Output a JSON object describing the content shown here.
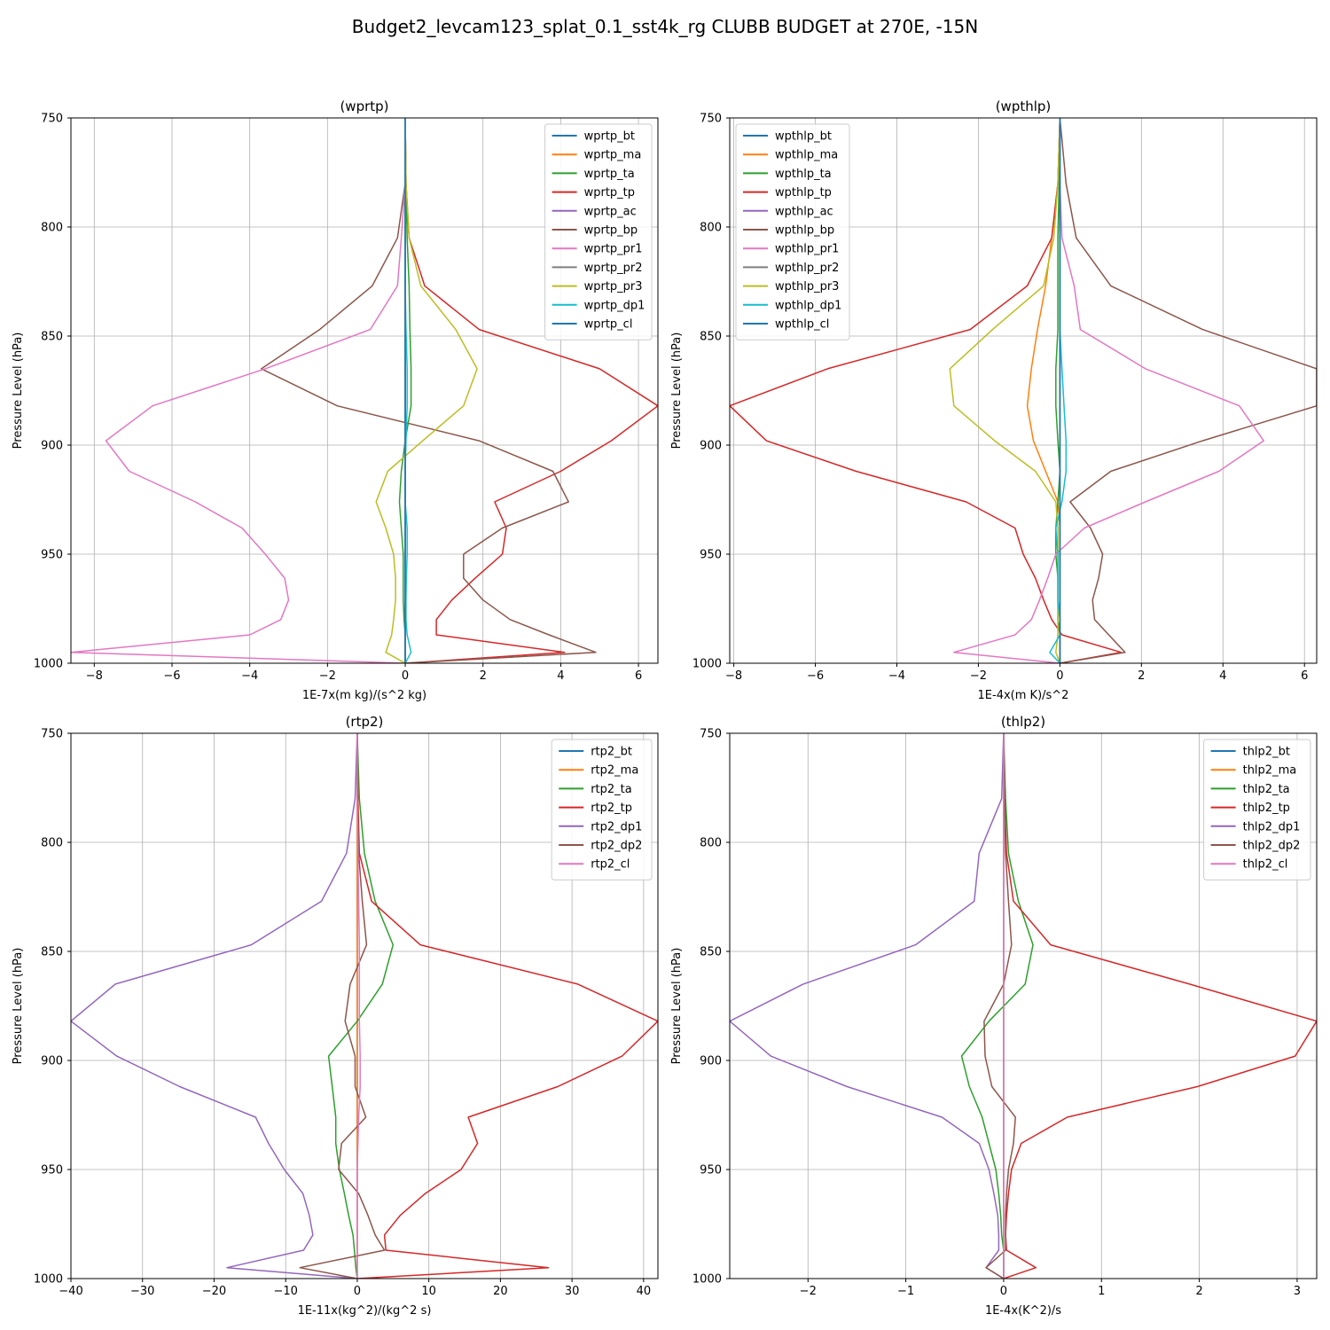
{
  "figure_title": "Budget2_levcam123_splat_0.1_sst4k_rg CLUBB BUDGET at 270E, -15N",
  "chart_data": [
    {
      "type": "line",
      "title": "(wprtp)",
      "xlabel": "1E-7x(m kg)/(s^2 kg)",
      "ylabel": "Pressure Level (hPa)",
      "xlim": [
        -8.6,
        6.5
      ],
      "ylim": [
        1000,
        750
      ],
      "xticks": [
        -8,
        -6,
        -4,
        -2,
        0,
        2,
        4,
        6
      ],
      "yticks": [
        750,
        800,
        850,
        900,
        950,
        1000
      ],
      "grid": true,
      "legend": "upper right",
      "levels": [
        750,
        780,
        805,
        827,
        847,
        865,
        882,
        898,
        912,
        926,
        938,
        950,
        961,
        971,
        980,
        987,
        995,
        1000
      ],
      "series": [
        {
          "name": "wprtp_bt",
          "color": "#1f77b4",
          "values": [
            0,
            0,
            0,
            0,
            0,
            0,
            0,
            0,
            0,
            0,
            0,
            0,
            0,
            0,
            0,
            0,
            0,
            0
          ]
        },
        {
          "name": "wprtp_ma",
          "color": "#ff7f0e",
          "values": [
            0,
            0,
            0,
            0,
            0,
            0,
            0,
            0,
            0,
            0,
            0,
            0,
            0,
            0,
            0,
            0,
            0,
            0
          ]
        },
        {
          "name": "wprtp_ta",
          "color": "#2ca02c",
          "values": [
            0,
            0.02,
            0.05,
            0.1,
            0.12,
            0.15,
            0.15,
            0.0,
            -0.1,
            -0.15,
            -0.1,
            -0.05,
            -0.05,
            -0.05,
            -0.03,
            0,
            0,
            0
          ]
        },
        {
          "name": "wprtp_tp",
          "color": "#d62728",
          "values": [
            0,
            0.02,
            0.1,
            0.5,
            1.9,
            5.0,
            6.5,
            5.3,
            4.0,
            2.3,
            2.6,
            2.5,
            1.8,
            1.2,
            0.8,
            0.8,
            4.1,
            0
          ]
        },
        {
          "name": "wprtp_ac",
          "color": "#9467bd",
          "values": [
            0,
            0,
            0,
            0,
            0,
            0,
            0,
            0,
            0,
            0,
            0,
            0,
            0,
            0,
            0,
            0,
            0,
            0
          ]
        },
        {
          "name": "wprtp_bp",
          "color": "#8c564b",
          "values": [
            0,
            0,
            -0.2,
            -0.85,
            -2.2,
            -3.7,
            -1.75,
            1.9,
            3.8,
            4.2,
            2.5,
            1.5,
            1.5,
            2.0,
            2.7,
            3.7,
            4.9,
            0
          ]
        },
        {
          "name": "wprtp_pr1",
          "color": "#e377c2",
          "values": [
            0,
            0,
            -0.1,
            -0.2,
            -0.9,
            -3.6,
            -6.5,
            -7.7,
            -7.1,
            -5.4,
            -4.2,
            -3.6,
            -3.1,
            -3.0,
            -3.2,
            -4.0,
            -8.6,
            0
          ]
        },
        {
          "name": "wprtp_pr2",
          "color": "#7f7f7f",
          "values": [
            0,
            0,
            0,
            0,
            0,
            0,
            0,
            0,
            0,
            0,
            0,
            0,
            0,
            0,
            0,
            0,
            0,
            0
          ]
        },
        {
          "name": "wprtp_pr3",
          "color": "#bcbd22",
          "values": [
            0,
            0.02,
            0.1,
            0.4,
            1.3,
            1.85,
            1.5,
            0.45,
            -0.45,
            -0.75,
            -0.5,
            -0.3,
            -0.25,
            -0.25,
            -0.3,
            -0.35,
            -0.5,
            0
          ]
        },
        {
          "name": "wprtp_dp1",
          "color": "#17becf",
          "values": [
            0,
            0,
            0,
            0,
            0.02,
            0.05,
            0.05,
            0.02,
            0,
            0,
            0.05,
            0.05,
            0.03,
            0.02,
            0.02,
            0.05,
            0.15,
            0
          ]
        },
        {
          "name": "wprtp_cl",
          "color": "#1f77b4",
          "values": [
            0,
            0,
            0,
            0,
            0,
            0,
            0,
            0,
            0,
            0,
            0,
            0,
            0,
            0,
            0,
            0,
            0,
            0
          ]
        }
      ]
    },
    {
      "type": "line",
      "title": "(wpthlp)",
      "xlabel": "1E-4x(m K)/s^2",
      "ylabel": "Pressure Level (hPa)",
      "xlim": [
        -8.1,
        6.3
      ],
      "ylim": [
        1000,
        750
      ],
      "xticks": [
        -8,
        -6,
        -4,
        -2,
        0,
        2,
        4,
        6
      ],
      "yticks": [
        750,
        800,
        850,
        900,
        950,
        1000
      ],
      "grid": true,
      "legend": "upper left",
      "levels": [
        750,
        780,
        805,
        827,
        847,
        865,
        882,
        898,
        912,
        926,
        938,
        950,
        961,
        971,
        980,
        987,
        995,
        1000
      ],
      "series": [
        {
          "name": "wpthlp_bt",
          "color": "#1f77b4",
          "values": [
            0,
            0,
            0,
            0,
            0,
            0,
            0,
            0,
            0,
            0,
            0,
            0,
            0,
            0,
            0,
            0,
            0,
            0
          ]
        },
        {
          "name": "wpthlp_ma",
          "color": "#ff7f0e",
          "values": [
            0,
            -0.05,
            -0.2,
            -0.35,
            -0.55,
            -0.7,
            -0.8,
            -0.65,
            -0.35,
            -0.05,
            0,
            0,
            0,
            0,
            0,
            0,
            0,
            0
          ]
        },
        {
          "name": "wpthlp_ta",
          "color": "#2ca02c",
          "values": [
            0,
            -0.02,
            -0.05,
            -0.05,
            -0.05,
            -0.1,
            -0.1,
            -0.05,
            0,
            -0.05,
            -0.1,
            -0.1,
            -0.05,
            -0.05,
            -0.05,
            0,
            0,
            0
          ]
        },
        {
          "name": "wpthlp_tp",
          "color": "#d62728",
          "values": [
            0,
            -0.05,
            -0.2,
            -0.8,
            -2.2,
            -5.7,
            -8.1,
            -7.2,
            -5.0,
            -2.3,
            -1.1,
            -0.9,
            -0.6,
            -0.4,
            -0.2,
            0.05,
            1.5,
            0
          ]
        },
        {
          "name": "wpthlp_ac",
          "color": "#9467bd",
          "values": [
            0,
            0,
            0,
            0,
            0,
            0,
            0,
            0,
            0,
            0,
            0,
            0,
            0,
            0,
            0,
            0,
            0,
            0
          ]
        },
        {
          "name": "wpthlp_bp",
          "color": "#8c564b",
          "values": [
            0,
            0.15,
            0.4,
            1.25,
            3.5,
            6.3,
            6.3,
            3.5,
            1.25,
            0.25,
            0.75,
            1.05,
            0.95,
            0.8,
            0.85,
            1.2,
            1.6,
            0
          ]
        },
        {
          "name": "wpthlp_pr1",
          "color": "#e377c2",
          "values": [
            0,
            0,
            0.05,
            0.35,
            0.5,
            2.1,
            4.4,
            5.0,
            3.9,
            2.1,
            0.6,
            -0.1,
            -0.3,
            -0.5,
            -0.7,
            -1.1,
            -2.6,
            0
          ]
        },
        {
          "name": "wpthlp_pr2",
          "color": "#7f7f7f",
          "values": [
            0,
            0,
            0,
            0,
            0,
            0,
            0,
            0,
            0,
            0,
            0,
            0,
            0,
            0,
            0,
            0,
            0,
            0
          ]
        },
        {
          "name": "wpthlp_pr3",
          "color": "#bcbd22",
          "values": [
            0,
            -0.05,
            -0.15,
            -0.4,
            -1.65,
            -2.7,
            -2.6,
            -1.6,
            -0.6,
            -0.1,
            -0.05,
            -0.05,
            -0.05,
            -0.05,
            -0.05,
            -0.05,
            -0.1,
            0
          ]
        },
        {
          "name": "wpthlp_dp1",
          "color": "#17becf",
          "values": [
            0,
            0,
            0,
            0,
            0,
            0.05,
            0.1,
            0.15,
            0.15,
            0.05,
            -0.1,
            -0.05,
            -0.05,
            -0.05,
            0,
            0,
            -0.25,
            0
          ]
        },
        {
          "name": "wpthlp_cl",
          "color": "#1f77b4",
          "values": [
            0,
            0,
            0,
            0,
            0,
            0,
            0,
            0,
            0,
            0,
            0,
            0,
            0,
            0,
            0,
            0,
            0,
            0
          ]
        }
      ]
    },
    {
      "type": "line",
      "title": "(rtp2)",
      "xlabel": "1E-11x(kg^2)/(kg^2 s)",
      "ylabel": "Pressure Level (hPa)",
      "xlim": [
        -40,
        42
      ],
      "ylim": [
        1000,
        750
      ],
      "xticks": [
        -40,
        -30,
        -20,
        -10,
        0,
        10,
        20,
        30,
        40
      ],
      "yticks": [
        750,
        800,
        850,
        900,
        950,
        1000
      ],
      "grid": true,
      "legend": "upper right",
      "levels": [
        750,
        780,
        805,
        827,
        847,
        865,
        882,
        898,
        912,
        926,
        938,
        950,
        961,
        971,
        980,
        987,
        995,
        1000
      ],
      "series": [
        {
          "name": "rtp2_bt",
          "color": "#1f77b4",
          "values": [
            0,
            0,
            0,
            0,
            0,
            0,
            0,
            0,
            0,
            0,
            0,
            0,
            0,
            0,
            0,
            0,
            0,
            0
          ]
        },
        {
          "name": "rtp2_ma",
          "color": "#ff7f0e",
          "values": [
            0,
            0,
            0,
            0,
            0,
            0,
            0,
            0,
            0,
            0,
            0,
            0,
            0,
            0,
            0,
            0,
            0,
            0
          ]
        },
        {
          "name": "rtp2_ta",
          "color": "#2ca02c",
          "values": [
            0,
            0.3,
            1.0,
            2.5,
            5.0,
            3.5,
            0,
            -4.0,
            -3.5,
            -3.0,
            -3.0,
            -2.5,
            -1.8,
            -1.2,
            -0.6,
            -0.4,
            -0.2,
            0
          ]
        },
        {
          "name": "rtp2_tp",
          "color": "#d62728",
          "values": [
            0,
            0.1,
            0.3,
            2.0,
            8.8,
            30.8,
            42.0,
            37.0,
            28.0,
            15.5,
            16.8,
            14.5,
            9.5,
            6.0,
            3.8,
            4.0,
            26.7,
            0
          ]
        },
        {
          "name": "rtp2_dp1",
          "color": "#9467bd",
          "values": [
            0,
            -0.3,
            -1.5,
            -5.0,
            -14.8,
            -33.8,
            -40.0,
            -33.6,
            -24.8,
            -14.2,
            -12.4,
            -10.2,
            -7.6,
            -6.7,
            -6.2,
            -7.5,
            -18.2,
            0
          ]
        },
        {
          "name": "rtp2_dp2",
          "color": "#8c564b",
          "values": [
            0,
            0,
            0.2,
            0.7,
            1.3,
            -1.0,
            -1.7,
            -0.3,
            -0.3,
            1.2,
            -2.2,
            -2.6,
            0.2,
            1.5,
            2.5,
            3.8,
            -8.0,
            0
          ]
        },
        {
          "name": "rtp2_cl",
          "color": "#e377c2",
          "values": [
            0,
            0,
            0.1,
            0.2,
            0.3,
            0.3,
            0.3,
            0.4,
            0.4,
            0.2,
            0.1,
            0,
            0,
            0,
            0,
            0,
            0,
            0
          ]
        }
      ]
    },
    {
      "type": "line",
      "title": "(thlp2)",
      "xlabel": "1E-4x(K^2)/s",
      "ylabel": "Pressure Level (hPa)",
      "xlim": [
        -2.8,
        3.2
      ],
      "ylim": [
        1000,
        750
      ],
      "xticks": [
        -2,
        -1,
        0,
        1,
        2,
        3
      ],
      "yticks": [
        750,
        800,
        850,
        900,
        950,
        1000
      ],
      "grid": true,
      "legend": "upper right",
      "levels": [
        750,
        780,
        805,
        827,
        847,
        865,
        882,
        898,
        912,
        926,
        938,
        950,
        961,
        971,
        980,
        987,
        995,
        1000
      ],
      "series": [
        {
          "name": "thlp2_bt",
          "color": "#1f77b4",
          "values": [
            0,
            0,
            0,
            0,
            0,
            0,
            0,
            0,
            0,
            0,
            0,
            0,
            0,
            0,
            0,
            0,
            0,
            0
          ]
        },
        {
          "name": "thlp2_ma",
          "color": "#ff7f0e",
          "values": [
            0,
            0,
            0,
            0,
            0,
            0,
            0,
            0,
            0,
            0,
            0,
            0,
            0,
            0,
            0,
            0,
            0,
            0
          ]
        },
        {
          "name": "thlp2_ta",
          "color": "#2ca02c",
          "values": [
            0,
            0.02,
            0.05,
            0.15,
            0.3,
            0.22,
            -0.15,
            -0.43,
            -0.35,
            -0.22,
            -0.15,
            -0.08,
            -0.05,
            -0.03,
            -0.02,
            0,
            0,
            0
          ]
        },
        {
          "name": "thlp2_tp",
          "color": "#d62728",
          "values": [
            0,
            0.01,
            0.03,
            0.1,
            0.48,
            1.9,
            3.2,
            2.98,
            1.98,
            0.65,
            0.18,
            0.08,
            0.05,
            0.03,
            0.02,
            0.03,
            0.33,
            0
          ]
        },
        {
          "name": "thlp2_dp1",
          "color": "#9467bd",
          "values": [
            0,
            -0.02,
            -0.25,
            -0.3,
            -0.9,
            -2.05,
            -2.8,
            -2.38,
            -1.6,
            -0.63,
            -0.25,
            -0.15,
            -0.1,
            -0.06,
            -0.05,
            -0.05,
            -0.18,
            0
          ]
        },
        {
          "name": "thlp2_dp2",
          "color": "#8c564b",
          "values": [
            0,
            0.01,
            0.02,
            0.05,
            0.08,
            0,
            -0.2,
            -0.19,
            -0.12,
            0.12,
            0.1,
            0.05,
            0.03,
            0.02,
            0.02,
            0.02,
            -0.18,
            0
          ]
        },
        {
          "name": "thlp2_cl",
          "color": "#e377c2",
          "values": [
            0,
            0,
            0,
            0,
            0,
            0,
            0,
            0,
            0,
            0,
            0,
            0,
            0,
            0,
            0,
            0,
            0,
            0
          ]
        }
      ]
    }
  ]
}
